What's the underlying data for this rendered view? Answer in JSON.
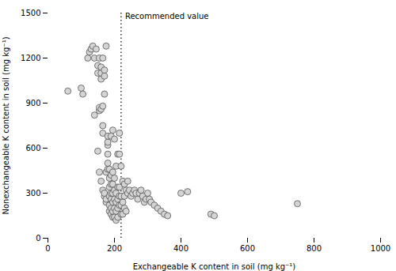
{
  "chart_data": {
    "type": "scatter",
    "x_label": "Exchangeable K content in soil (mg kg⁻¹)",
    "y_label": "Nonexchangeable K content in soil (mg kg⁻¹)",
    "x": [
      60,
      100,
      105,
      120,
      125,
      130,
      135,
      140,
      145,
      150,
      150,
      155,
      155,
      155,
      160,
      160,
      160,
      160,
      165,
      165,
      165,
      165,
      170,
      170,
      170,
      175,
      140,
      150,
      155,
      160,
      165,
      170,
      170,
      175,
      175,
      175,
      180,
      180,
      180,
      180,
      180,
      180,
      185,
      185,
      185,
      185,
      185,
      185,
      190,
      190,
      190,
      190,
      190,
      190,
      190,
      195,
      195,
      195,
      195,
      195,
      195,
      195,
      200,
      200,
      200,
      200,
      200,
      200,
      205,
      205,
      205,
      205,
      205,
      210,
      210,
      210,
      210,
      210,
      215,
      215,
      215,
      215,
      215,
      220,
      220,
      220,
      220,
      225,
      225,
      225,
      230,
      230,
      230,
      235,
      235,
      240,
      240,
      245,
      250,
      255,
      260,
      265,
      270,
      275,
      280,
      285,
      290,
      295,
      300,
      305,
      310,
      320,
      330,
      340,
      350,
      360,
      400,
      420,
      490,
      500,
      750
    ],
    "values": [
      980,
      1000,
      960,
      1200,
      1240,
      1260,
      1280,
      1200,
      1260,
      1100,
      1150,
      850,
      870,
      1200,
      1060,
      1100,
      1140,
      860,
      700,
      750,
      880,
      1200,
      960,
      1080,
      1120,
      1280,
      820,
      580,
      440,
      380,
      320,
      280,
      300,
      240,
      260,
      440,
      460,
      500,
      560,
      620,
      640,
      680,
      180,
      220,
      280,
      340,
      400,
      460,
      160,
      200,
      260,
      300,
      360,
      420,
      680,
      140,
      180,
      240,
      300,
      360,
      440,
      720,
      140,
      200,
      260,
      320,
      400,
      660,
      120,
      180,
      240,
      300,
      480,
      140,
      200,
      260,
      340,
      560,
      220,
      280,
      340,
      560,
      700,
      160,
      220,
      280,
      480,
      160,
      240,
      380,
      200,
      280,
      360,
      180,
      320,
      300,
      380,
      320,
      280,
      300,
      320,
      300,
      260,
      300,
      320,
      280,
      240,
      260,
      300,
      260,
      240,
      220,
      200,
      180,
      160,
      150,
      300,
      310,
      160,
      150,
      230
    ],
    "color": "#d4d4d4",
    "marker": "circle",
    "xlim": [
      0,
      1000
    ],
    "ylim": [
      0,
      1500
    ],
    "xticks": [
      0,
      200,
      400,
      600,
      800,
      1000
    ],
    "yticks": [
      0,
      300,
      600,
      900,
      1200,
      1500
    ],
    "grid": false,
    "annotations": [
      {
        "type": "vline",
        "x": 220,
        "text": "Recommended value",
        "line_style": "dotted"
      }
    ]
  }
}
